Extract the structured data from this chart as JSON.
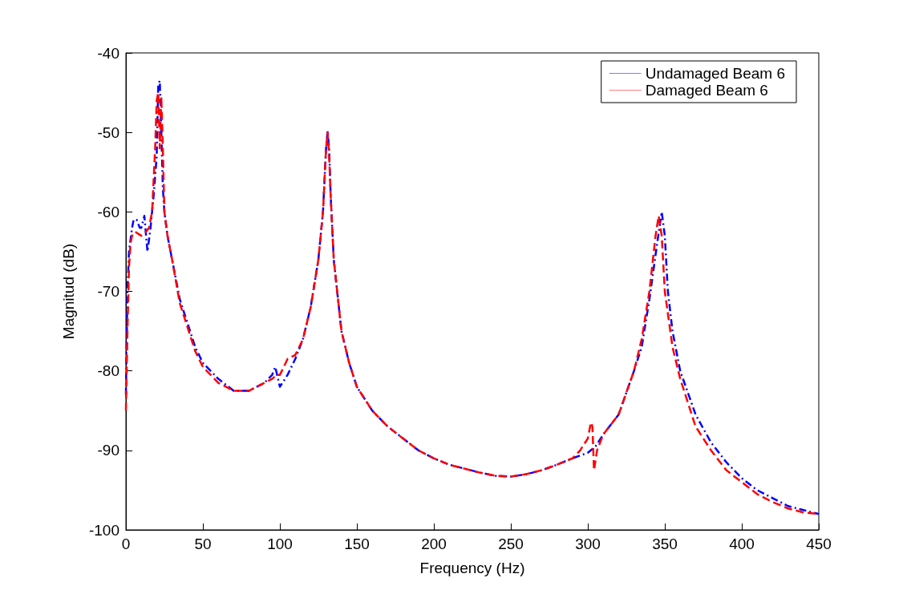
{
  "chart_data": {
    "type": "line",
    "xlabel": "Frequency (Hz)",
    "ylabel": "Magnitud (dB)",
    "xlim": [
      0,
      450
    ],
    "xticks": [
      0,
      50,
      100,
      150,
      200,
      250,
      300,
      350,
      400,
      450
    ],
    "ylim": [
      -100,
      -40
    ],
    "yticks": [
      -100,
      -90,
      -80,
      -70,
      -60,
      -50,
      -40
    ],
    "grid": false,
    "legend": "top right",
    "marker": "none",
    "series": [
      {
        "name": "Undamaged Beam 6",
        "color": "#0000ff",
        "line_style": "dashdot",
        "x": [
          0,
          1,
          2,
          4,
          5,
          7,
          9,
          10,
          12,
          14,
          16,
          18,
          20,
          21,
          22,
          23,
          24,
          25,
          27,
          30,
          35,
          40,
          45,
          50,
          60,
          70,
          80,
          90,
          95,
          97,
          100,
          105,
          110,
          115,
          120,
          125,
          128,
          130,
          131,
          132,
          133,
          135,
          140,
          145,
          150,
          160,
          170,
          180,
          190,
          200,
          210,
          220,
          230,
          240,
          250,
          260,
          270,
          280,
          290,
          300,
          305,
          310,
          320,
          330,
          335,
          340,
          345,
          348,
          350,
          352,
          355,
          360,
          370,
          380,
          390,
          400,
          410,
          420,
          430,
          440,
          450
        ],
        "values": [
          -83,
          -70,
          -65,
          -62,
          -61,
          -61,
          -62,
          -62,
          -60.5,
          -65,
          -62,
          -58,
          -53,
          -44,
          -43.5,
          -50,
          -57,
          -60,
          -63,
          -66,
          -71,
          -74,
          -77,
          -79,
          -81,
          -82.5,
          -82.5,
          -81.5,
          -80.5,
          -79.5,
          -82,
          -80.5,
          -78.5,
          -76,
          -72,
          -66,
          -60,
          -52,
          -49.8,
          -52,
          -58,
          -66,
          -75,
          -79,
          -82,
          -85,
          -87,
          -88.5,
          -90,
          -91,
          -91.8,
          -92.3,
          -92.8,
          -93.2,
          -93.3,
          -93,
          -92.5,
          -91.8,
          -91,
          -90.3,
          -89.5,
          -88,
          -85.5,
          -80,
          -77,
          -71,
          -64,
          -60,
          -63,
          -70,
          -75,
          -80,
          -85.5,
          -89,
          -91.5,
          -93.5,
          -95,
          -96,
          -97,
          -97.5,
          -98
        ]
      },
      {
        "name": "Damaged Beam 6",
        "color": "#ff0000",
        "line_style": "dashed",
        "x": [
          0,
          1,
          2,
          3,
          4,
          6,
          10,
          13,
          15,
          17,
          19,
          20,
          21,
          22,
          23,
          24,
          25,
          27,
          30,
          35,
          40,
          45,
          50,
          60,
          70,
          80,
          90,
          95,
          98,
          100,
          105,
          110,
          115,
          120,
          125,
          128,
          130,
          131,
          132,
          133,
          135,
          140,
          145,
          150,
          160,
          170,
          180,
          190,
          200,
          210,
          220,
          230,
          240,
          250,
          260,
          270,
          280,
          290,
          295,
          300,
          302,
          303,
          304,
          306,
          310,
          320,
          330,
          335,
          340,
          344,
          346,
          348,
          350,
          355,
          360,
          370,
          380,
          390,
          400,
          410,
          420,
          430,
          440,
          450
        ],
        "values": [
          -85,
          -75,
          -67,
          -64,
          -63,
          -62.5,
          -63,
          -62.5,
          -62,
          -60,
          -52,
          -46,
          -45,
          -52,
          -45.5,
          -52,
          -60,
          -63,
          -66,
          -71.5,
          -74.5,
          -77.5,
          -79.5,
          -81.5,
          -82.5,
          -82.5,
          -81.5,
          -81,
          -80.5,
          -80.5,
          -78.5,
          -78,
          -76,
          -72,
          -66,
          -60,
          -52,
          -50,
          -53,
          -58,
          -66,
          -75,
          -79,
          -82,
          -85,
          -87,
          -88.5,
          -90,
          -91,
          -91.8,
          -92.3,
          -92.8,
          -93.2,
          -93.3,
          -93,
          -92.5,
          -91.8,
          -91,
          -90,
          -88.5,
          -86.5,
          -87,
          -92.5,
          -90,
          -88,
          -85.5,
          -80,
          -76,
          -70,
          -63,
          -60.5,
          -63,
          -70,
          -77,
          -81,
          -87,
          -90,
          -92.5,
          -94,
          -95.5,
          -96.5,
          -97.3,
          -97.8,
          -98
        ]
      }
    ]
  }
}
